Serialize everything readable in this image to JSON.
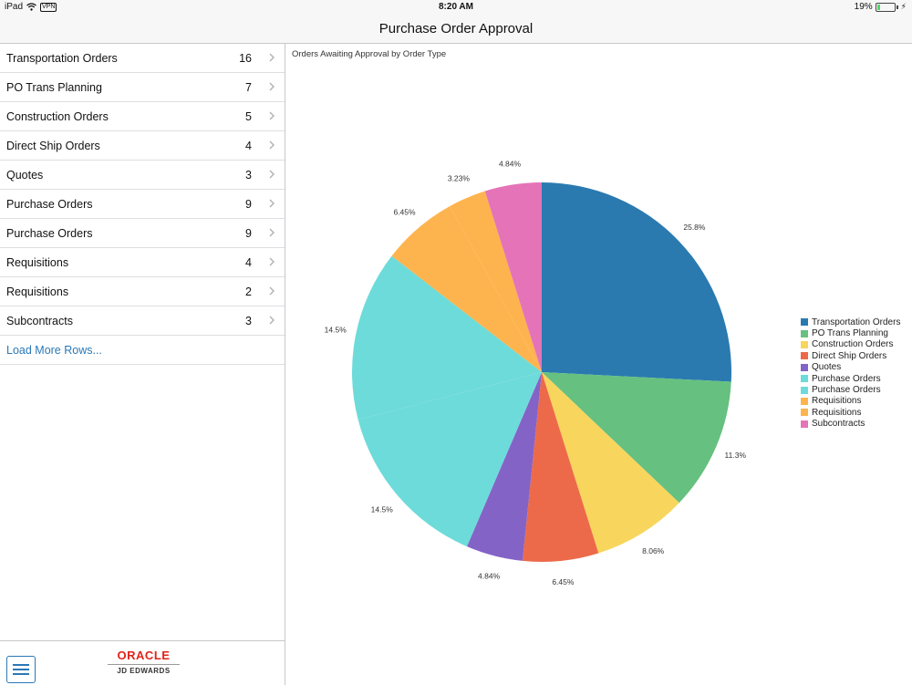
{
  "status_bar": {
    "device": "iPad",
    "vpn": "VPN",
    "time": "8:20 AM",
    "battery": "19%",
    "battery_level": 0.19
  },
  "nav": {
    "title": "Purchase Order Approval"
  },
  "list": {
    "items": [
      {
        "label": "Transportation Orders",
        "count": "16"
      },
      {
        "label": "PO Trans Planning",
        "count": "7"
      },
      {
        "label": "Construction Orders",
        "count": "5"
      },
      {
        "label": "Direct Ship Orders",
        "count": "4"
      },
      {
        "label": "Quotes",
        "count": "3"
      },
      {
        "label": "Purchase Orders",
        "count": "9"
      },
      {
        "label": "Purchase Orders",
        "count": "9"
      },
      {
        "label": "Requisitions",
        "count": "4"
      },
      {
        "label": "Requisitions",
        "count": "2"
      },
      {
        "label": "Subcontracts",
        "count": "3"
      }
    ],
    "load_more": "Load More Rows..."
  },
  "bottom_bar": {
    "menu_icon": "hamburger-menu-icon",
    "logo_top": "ORACLE",
    "logo_bottom": "JD EDWARDS"
  },
  "chart_data": {
    "type": "pie",
    "title": "Orders Awaiting Approval by Order Type",
    "legend_position": "right",
    "categories": [
      "Transportation Orders",
      "PO Trans Planning",
      "Construction Orders",
      "Direct Ship Orders",
      "Quotes",
      "Purchase Orders",
      "Purchase Orders",
      "Requisitions",
      "Requisitions",
      "Subcontracts"
    ],
    "values": [
      16,
      7,
      5,
      4,
      3,
      9,
      9,
      4,
      2,
      3
    ],
    "labels": [
      "25.8%",
      "11.3%",
      "8.06%",
      "6.45%",
      "4.84%",
      "14.5%",
      "14.5%",
      "6.45%",
      "3.23%",
      "4.84%"
    ],
    "colors": [
      "#2a7ab0",
      "#66c080",
      "#f8d55c",
      "#ec6a4a",
      "#8463c7",
      "#6ddbd9",
      "#6ddbd9",
      "#fdb44e",
      "#fdb44e",
      "#e573b7"
    ]
  }
}
